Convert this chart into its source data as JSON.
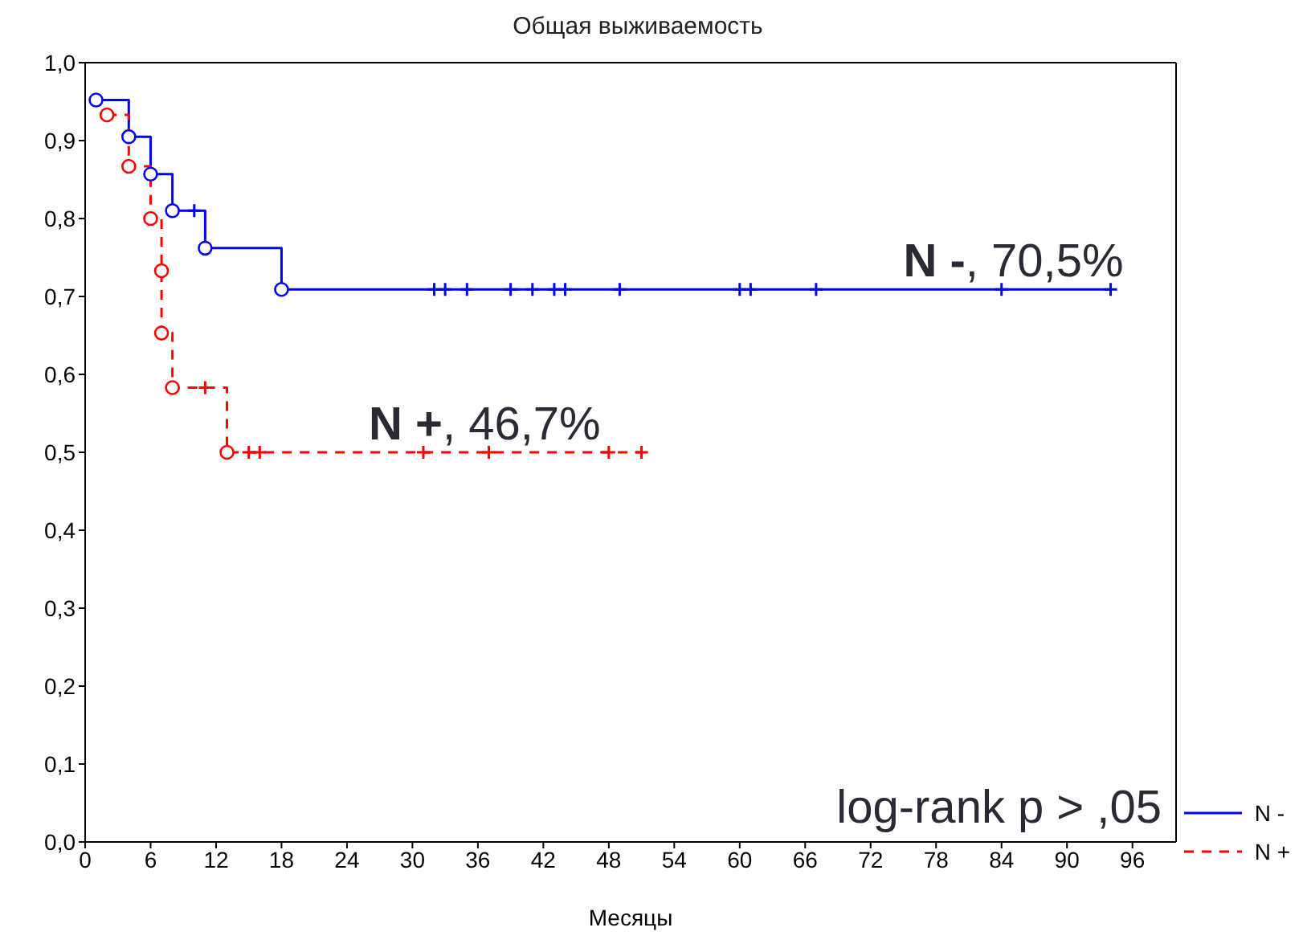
{
  "chart_data": {
    "type": "step",
    "title": "Общая выживаемость",
    "xlabel": "Месяцы",
    "xlim": [
      0,
      100
    ],
    "xticks": [
      0,
      6,
      12,
      18,
      24,
      30,
      36,
      42,
      48,
      54,
      60,
      66,
      72,
      78,
      84,
      90,
      96
    ],
    "ylim": [
      0,
      1
    ],
    "yticks": [
      {
        "value": 0,
        "label": "0,0"
      },
      {
        "value": 0.1,
        "label": "0,1"
      },
      {
        "value": 0.2,
        "label": "0,2"
      },
      {
        "value": 0.3,
        "label": "0,3"
      },
      {
        "value": 0.4,
        "label": "0,4"
      },
      {
        "value": 0.5,
        "label": "0,5"
      },
      {
        "value": 0.6,
        "label": "0,6"
      },
      {
        "value": 0.7,
        "label": "0,7"
      },
      {
        "value": 0.8,
        "label": "0,8"
      },
      {
        "value": 0.9,
        "label": "0,9"
      },
      {
        "value": 1,
        "label": "1,0"
      }
    ],
    "legend": "bottom right",
    "series": [
      {
        "name": "N -",
        "type": "step",
        "color": "#0000ff",
        "line_style": "solid",
        "marker": "none",
        "x": [
          1,
          4,
          6,
          8,
          11,
          18,
          94
        ],
        "values": [
          0.952,
          0.905,
          0.857,
          0.81,
          0.762,
          0.709,
          0.709
        ]
      },
      {
        "type": "scatter",
        "color": "#0000ff",
        "marker": "circle",
        "x": [
          1,
          4,
          6,
          8,
          11,
          18
        ],
        "values": [
          0.952,
          0.905,
          0.857,
          0.81,
          0.762,
          0.709
        ]
      },
      {
        "type": "scatter",
        "color": "#0000ff",
        "marker": "cross",
        "x": [
          10,
          32,
          33,
          35,
          39,
          41,
          43,
          44,
          49,
          60,
          61,
          67,
          84,
          94
        ],
        "values": [
          0.81,
          0.709,
          0.709,
          0.709,
          0.709,
          0.709,
          0.709,
          0.709,
          0.709,
          0.709,
          0.709,
          0.709,
          0.709,
          0.709
        ]
      },
      {
        "name": "N +",
        "type": "step",
        "color": "#ff0000",
        "line_style": "dashed",
        "marker": "none",
        "x": [
          2,
          4,
          6,
          7,
          7,
          8,
          13,
          51
        ],
        "values": [
          0.933,
          0.867,
          0.8,
          0.733,
          0.653,
          0.583,
          0.5,
          0.5
        ]
      },
      {
        "type": "scatter",
        "color": "#ff0000",
        "marker": "circle",
        "x": [
          2,
          4,
          6,
          7,
          7,
          8,
          13
        ],
        "values": [
          0.933,
          0.867,
          0.8,
          0.733,
          0.653,
          0.583,
          0.5
        ]
      },
      {
        "type": "scatter",
        "color": "#ff0000",
        "marker": "cross",
        "x": [
          11,
          15,
          16,
          31,
          37,
          48,
          51
        ],
        "values": [
          0.583,
          0.5,
          0.5,
          0.5,
          0.5,
          0.5,
          0.5
        ]
      }
    ],
    "annotations": [
      {
        "text": "N -, 70,5%",
        "x": 75,
        "y": 0.709
      },
      {
        "text": "N +, 46,7%",
        "x": 26,
        "y": 0.5
      },
      "log-rank p > ,05"
    ]
  }
}
